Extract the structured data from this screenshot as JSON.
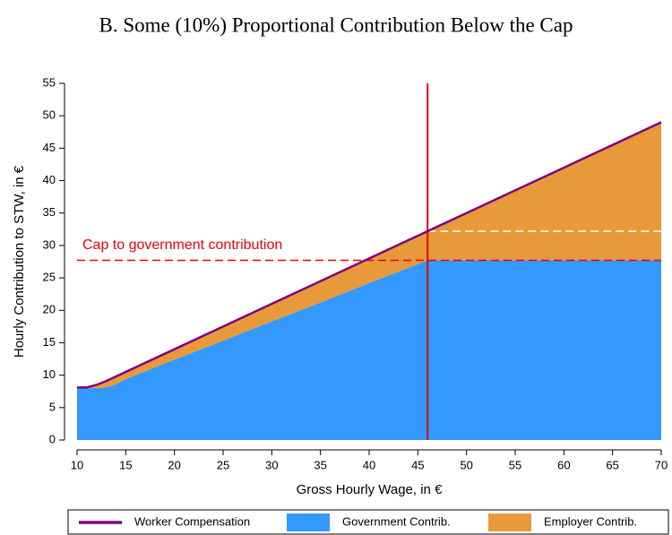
{
  "chart_data": {
    "type": "stacked_area",
    "title": "B. Some (10%) Proportional Contribution Below the Cap",
    "x_label": "Gross Hourly Wage, in €",
    "y_label": "Hourly Contribution to STW, in €",
    "x": [
      10,
      11,
      12,
      13,
      14,
      15,
      20,
      25,
      30,
      35,
      40,
      46,
      50,
      55,
      60,
      65,
      70
    ],
    "series": [
      {
        "name": "Worker Compensation",
        "color": "#800080",
        "kind": "line",
        "values": [
          8.1,
          8.1,
          8.5,
          9.1,
          9.8,
          10.5,
          14,
          17.5,
          21,
          24.5,
          28,
          32.2,
          35,
          38.5,
          42,
          45.5,
          49
        ]
      },
      {
        "name": "Government Contrib.",
        "color": "#3399ff",
        "kind": "area",
        "values": [
          8.1,
          8.0,
          8.0,
          8.1,
          8.6,
          9.4,
          12.4,
          15.3,
          18.3,
          21.2,
          24.2,
          27.7,
          27.7,
          27.7,
          27.7,
          27.7,
          27.7
        ]
      },
      {
        "name": "Employer Contrib.",
        "color": "#e8993a",
        "kind": "area",
        "values": [
          0,
          0.1,
          0.5,
          1.0,
          1.2,
          1.1,
          1.6,
          2.2,
          2.7,
          3.3,
          3.8,
          4.5,
          7.3,
          10.8,
          14.3,
          17.8,
          21.3
        ]
      }
    ],
    "cap_wage": 46,
    "cap_contribution": 27.7,
    "cap_label": "Cap to government contribution",
    "xlim": [
      10,
      70
    ],
    "ylim": [
      0,
      55
    ],
    "xticks": [
      10,
      15,
      20,
      25,
      30,
      35,
      40,
      45,
      50,
      55,
      60,
      65,
      70
    ],
    "yticks": [
      0,
      5,
      10,
      15,
      20,
      25,
      30,
      35,
      40,
      45,
      50,
      55
    ],
    "legend": "bottom"
  }
}
